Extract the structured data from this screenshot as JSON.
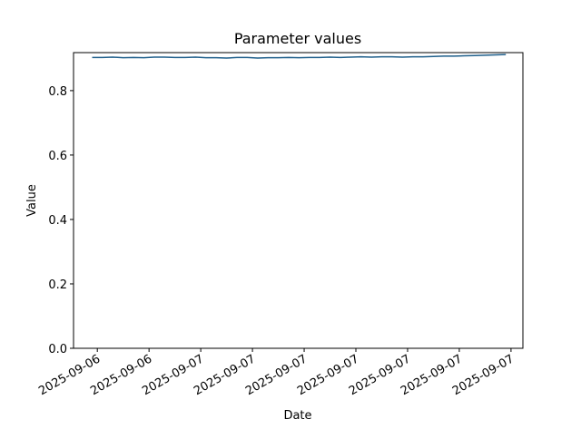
{
  "chart_data": {
    "type": "line",
    "title": "Parameter values",
    "x_label": "Date",
    "y_label": "Value",
    "x": [
      -0.1,
      0.1,
      0.3,
      0.5,
      0.7,
      0.9,
      1.1,
      1.3,
      1.5,
      1.7,
      1.9,
      2.1,
      2.3,
      2.5,
      2.7,
      2.9,
      3.1,
      3.3,
      3.5,
      3.7,
      3.9,
      4.1,
      4.3,
      4.5,
      4.7,
      4.9,
      5.1,
      5.3,
      5.5,
      5.7,
      5.9,
      6.1,
      6.3,
      6.5,
      6.7,
      6.9,
      7.1,
      7.3,
      7.5,
      7.7,
      7.9
    ],
    "series": [
      {
        "name": "Value",
        "color": "#1f5f8b",
        "values": [
          0.903,
          0.903,
          0.904,
          0.902,
          0.903,
          0.902,
          0.904,
          0.904,
          0.903,
          0.903,
          0.904,
          0.902,
          0.902,
          0.901,
          0.903,
          0.903,
          0.901,
          0.902,
          0.902,
          0.903,
          0.902,
          0.903,
          0.903,
          0.904,
          0.903,
          0.904,
          0.905,
          0.904,
          0.905,
          0.905,
          0.904,
          0.905,
          0.905,
          0.906,
          0.907,
          0.907,
          0.908,
          0.909,
          0.91,
          0.911,
          0.912
        ]
      }
    ],
    "xlim": [
      -0.46,
      8.23
    ],
    "xticks": [
      {
        "value": 0,
        "label": "2025-09-06"
      },
      {
        "value": 1,
        "label": "2025-09-06"
      },
      {
        "value": 2,
        "label": "2025-09-07"
      },
      {
        "value": 3,
        "label": "2025-09-07"
      },
      {
        "value": 4,
        "label": "2025-09-07"
      },
      {
        "value": 5,
        "label": "2025-09-07"
      },
      {
        "value": 6,
        "label": "2025-09-07"
      },
      {
        "value": 7,
        "label": "2025-09-07"
      },
      {
        "value": 8,
        "label": "2025-09-07"
      }
    ],
    "ylim": [
      0,
      0.918
    ],
    "yticks": [
      {
        "value": 0,
        "label": "0.0"
      },
      0.2,
      0.4,
      0.6,
      0.8
    ]
  }
}
